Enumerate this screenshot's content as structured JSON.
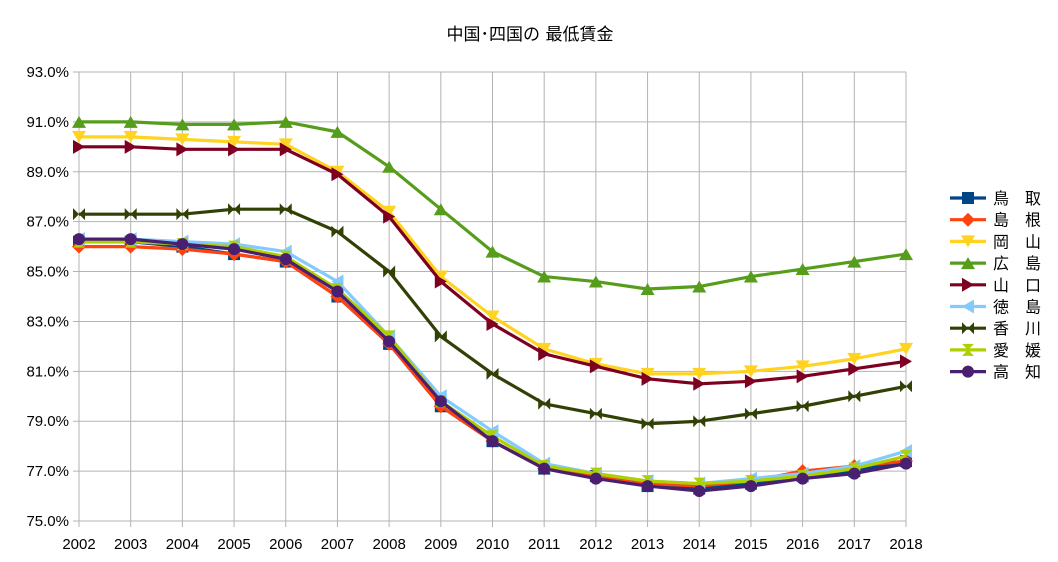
{
  "chart_data": {
    "type": "line",
    "title": "中国･四国の 最低賃金",
    "xlabel": "",
    "ylabel": "",
    "x": [
      "2002",
      "2003",
      "2004",
      "2005",
      "2006",
      "2007",
      "2008",
      "2009",
      "2010",
      "2011",
      "2012",
      "2013",
      "2014",
      "2015",
      "2016",
      "2017",
      "2018"
    ],
    "ylim": [
      75.0,
      93.0
    ],
    "ystep": 2.0,
    "ytick_labels": [
      "75.0%",
      "77.0%",
      "79.0%",
      "81.0%",
      "83.0%",
      "85.0%",
      "87.0%",
      "89.0%",
      "91.0%",
      "93.0%"
    ],
    "grid": true,
    "legend_position": "right",
    "series": [
      {
        "name": "鳥　取",
        "color": "#004586",
        "marker": "square",
        "values": [
          86.2,
          86.2,
          86.0,
          85.7,
          85.4,
          84.0,
          82.1,
          79.6,
          78.2,
          77.1,
          76.8,
          76.4,
          76.3,
          76.5,
          76.8,
          77.0,
          77.4
        ]
      },
      {
        "name": "島　根",
        "color": "#ff420e",
        "marker": "diamond",
        "values": [
          86.0,
          86.0,
          85.9,
          85.7,
          85.4,
          84.0,
          82.1,
          79.6,
          78.2,
          77.1,
          76.8,
          76.5,
          76.4,
          76.6,
          77.0,
          77.2,
          77.4
        ]
      },
      {
        "name": "岡　山",
        "color": "#ffd320",
        "marker": "triangle-down",
        "values": [
          90.4,
          90.4,
          90.3,
          90.2,
          90.1,
          89.0,
          87.4,
          84.8,
          83.2,
          81.9,
          81.3,
          80.9,
          80.9,
          81.0,
          81.2,
          81.5,
          81.9
        ]
      },
      {
        "name": "広　島",
        "color": "#579d1c",
        "marker": "triangle-up",
        "values": [
          91.0,
          91.0,
          90.9,
          90.9,
          91.0,
          90.6,
          89.2,
          87.5,
          85.8,
          84.8,
          84.6,
          84.3,
          84.4,
          84.8,
          85.1,
          85.4,
          85.7
        ]
      },
      {
        "name": "山　口",
        "color": "#7e0021",
        "marker": "triangle-right",
        "values": [
          90.0,
          90.0,
          89.9,
          89.9,
          89.9,
          88.9,
          87.2,
          84.6,
          82.9,
          81.7,
          81.2,
          80.7,
          80.5,
          80.6,
          80.8,
          81.1,
          81.4
        ]
      },
      {
        "name": "徳　島",
        "color": "#83caff",
        "marker": "triangle-left",
        "values": [
          86.3,
          86.3,
          86.2,
          86.1,
          85.8,
          84.6,
          82.4,
          80.0,
          78.6,
          77.3,
          76.9,
          76.6,
          76.5,
          76.7,
          76.9,
          77.2,
          77.8
        ]
      },
      {
        "name": "香　川",
        "color": "#314004",
        "marker": "bowtie",
        "values": [
          87.3,
          87.3,
          87.3,
          87.5,
          87.5,
          86.6,
          85.0,
          82.4,
          80.9,
          79.7,
          79.3,
          78.9,
          79.0,
          79.3,
          79.6,
          80.0,
          80.4
        ]
      },
      {
        "name": "愛　媛",
        "color": "#aecf00",
        "marker": "hourglass",
        "values": [
          86.2,
          86.2,
          86.1,
          86.0,
          85.6,
          84.3,
          82.4,
          79.8,
          78.4,
          77.2,
          76.9,
          76.6,
          76.5,
          76.6,
          76.8,
          77.1,
          77.6
        ]
      },
      {
        "name": "高　知",
        "color": "#4b1f6f",
        "marker": "circle",
        "values": [
          86.3,
          86.3,
          86.1,
          85.9,
          85.5,
          84.2,
          82.2,
          79.8,
          78.2,
          77.1,
          76.7,
          76.4,
          76.2,
          76.4,
          76.7,
          76.9,
          77.3
        ]
      }
    ]
  }
}
